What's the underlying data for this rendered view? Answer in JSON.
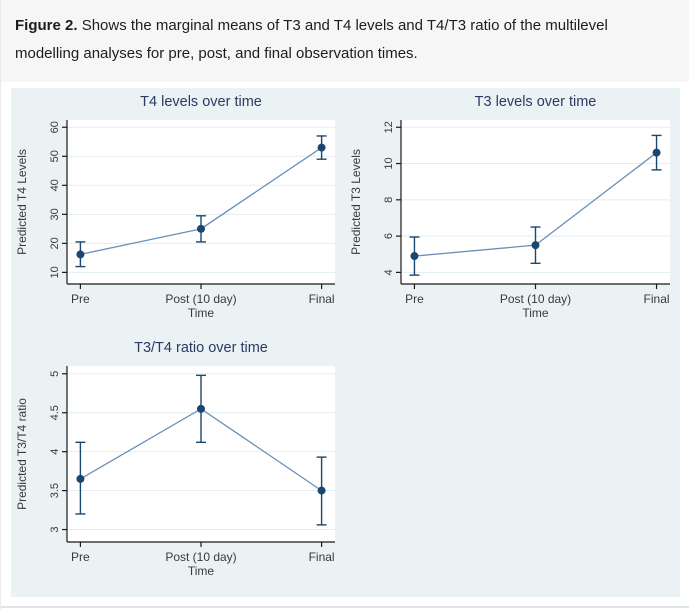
{
  "caption": {
    "label": "Figure 2.",
    "text": "Shows the marginal means of T3 and T4 levels and T4/T3 ratio of the multilevel modelling analyses for pre, post, and final observation times."
  },
  "colors": {
    "page_bg": "#ffffff",
    "caption_bg": "#f6f6f6",
    "caption_text": "#1d1d1f",
    "figure_bg": "#eaf2f3",
    "plot_bg": "#ffffff",
    "gridline": "#e3edef",
    "axis": "#1a1a1a",
    "text": "#3a3a3a",
    "title": "#2b3a64",
    "marker": "#1a476f",
    "line": "#6a8fb8",
    "divider": "#dfe5e7"
  },
  "chart_data": [
    {
      "type": "line",
      "title": "T4 levels over time",
      "xlabel": "Time",
      "ylabel": "Predicted T4 Levels",
      "categories": [
        "Pre",
        "Post (10 day)",
        "Final"
      ],
      "values": [
        16.2,
        25,
        53
      ],
      "ci_low": [
        12,
        20.5,
        49
      ],
      "ci_high": [
        20.5,
        29.5,
        57
      ],
      "yticks": [
        10,
        20,
        30,
        40,
        50,
        60
      ],
      "ylim": [
        10,
        60
      ],
      "grid": true,
      "legend": "none",
      "error_bars": true
    },
    {
      "type": "line",
      "title": "T3 levels over time",
      "xlabel": "Time",
      "ylabel": "Predicted T3 Levels",
      "categories": [
        "Pre",
        "Post (10 day)",
        "Final"
      ],
      "values": [
        4.9,
        5.5,
        10.6
      ],
      "ci_low": [
        3.85,
        4.5,
        9.65
      ],
      "ci_high": [
        5.95,
        6.5,
        11.55
      ],
      "yticks": [
        4,
        6,
        8,
        10,
        12
      ],
      "ylim": [
        4,
        12
      ],
      "grid": true,
      "legend": "none",
      "error_bars": true
    },
    {
      "type": "line",
      "title": "T3/T4 ratio over time",
      "xlabel": "Time",
      "ylabel": "Predicted T3/T4 ratio",
      "categories": [
        "Pre",
        "Post (10 day)",
        "Final"
      ],
      "values": [
        3.65,
        4.55,
        3.5
      ],
      "ci_low": [
        3.2,
        4.12,
        3.06
      ],
      "ci_high": [
        4.12,
        4.98,
        3.93
      ],
      "yticks": [
        3,
        3.5,
        4,
        4.5,
        5
      ],
      "ylim": [
        3,
        5
      ],
      "grid": true,
      "legend": "none",
      "error_bars": true
    }
  ]
}
